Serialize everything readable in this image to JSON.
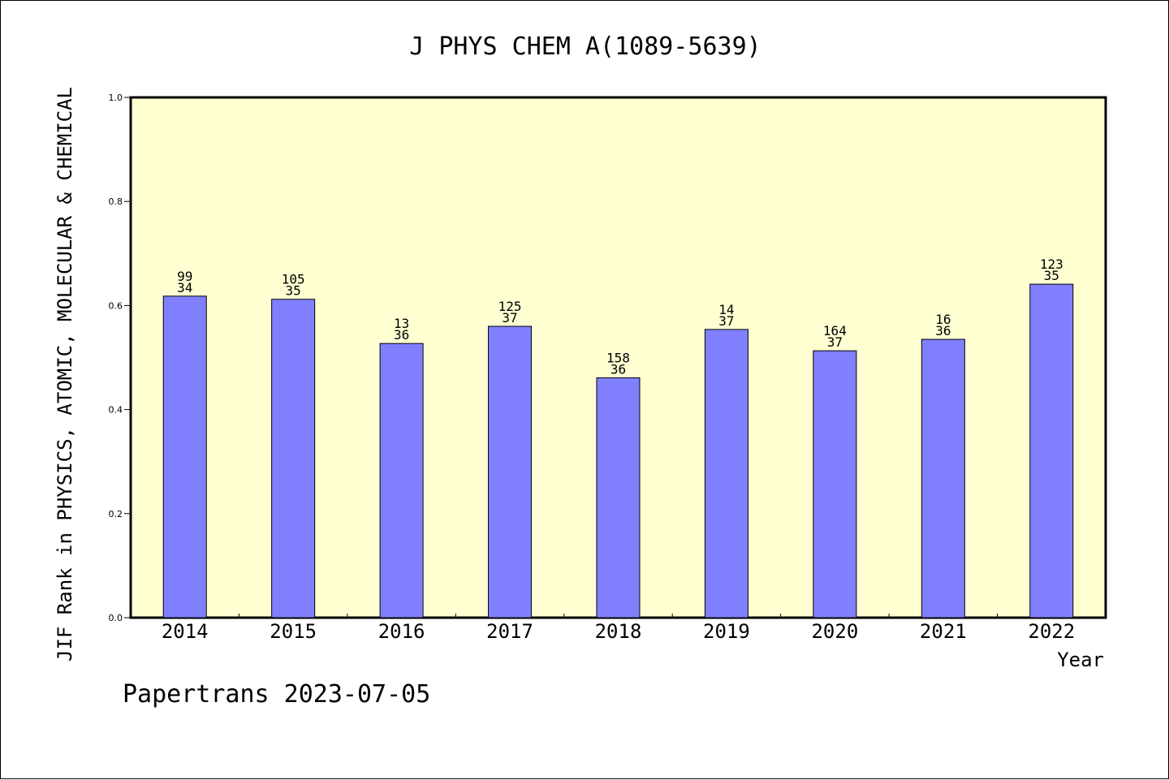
{
  "chart_data": {
    "type": "bar",
    "title": "J PHYS CHEM A(1089-5639)",
    "xlabel": "Year",
    "ylabel": "JIF Rank in PHYSICS, ATOMIC, MOLECULAR & CHEMICAL",
    "ylim": [
      0.0,
      1.0
    ],
    "yticks": [
      "0.0",
      "0.2",
      "0.4",
      "0.6",
      "0.8",
      "1.0"
    ],
    "categories": [
      "2014",
      "2015",
      "2016",
      "2017",
      "2018",
      "2019",
      "2020",
      "2021",
      "2022"
    ],
    "values": [
      0.618,
      0.612,
      0.527,
      0.56,
      0.461,
      0.554,
      0.513,
      0.535,
      0.641
    ],
    "labels_top": [
      "99",
      "105",
      "13",
      "125",
      "158",
      "14",
      "164",
      "16",
      "123"
    ],
    "labels_bottom": [
      "34",
      "35",
      "36",
      "37",
      "36",
      "37",
      "37",
      "36",
      "35"
    ],
    "grid": false,
    "legend": "none",
    "colors": {
      "plot_background": "#ffffd2",
      "bar_fill": "#8080ff",
      "bar_stroke": "#000000",
      "axis": "#000000"
    }
  },
  "footer": "Papertrans 2023-07-05"
}
